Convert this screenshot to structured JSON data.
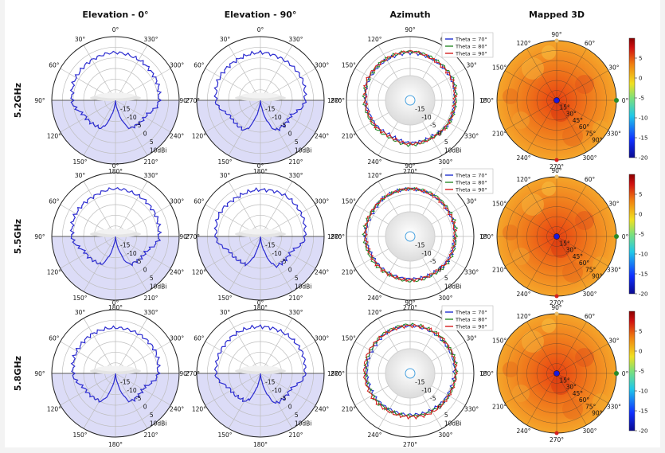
{
  "chart_data": {
    "type": "polar",
    "column_titles": [
      "Elevation - 0°",
      "Elevation - 90°",
      "Azimuth",
      "Mapped 3D"
    ],
    "row_labels": [
      "5.2GHz",
      "5.5GHz",
      "5.8GHz"
    ],
    "elevation_angle_labels": [
      "0°",
      "30°",
      "60°",
      "90°",
      "120°",
      "150°",
      "180°",
      "210°",
      "240°",
      "270°",
      "300°",
      "330°"
    ],
    "azimuth_angle_labels": [
      "0°",
      "30°",
      "60°",
      "90°",
      "120°",
      "150°",
      "180°",
      "210°",
      "240°",
      "270°",
      "300°",
      "330°"
    ],
    "radial_ticks": [
      "-15",
      "-10",
      "-5",
      "0",
      "5",
      "10dBi"
    ],
    "radial_range_dbi": [
      -20,
      10
    ],
    "legend": [
      {
        "name": "Theta = 70°",
        "color": "#1f2fd0"
      },
      {
        "name": "Theta = 80°",
        "color": "#2a8a2a"
      },
      {
        "name": "Theta = 90°",
        "color": "#d62020"
      }
    ],
    "map_radial_labels": [
      "15°",
      "30°",
      "45°",
      "60°",
      "75°",
      "90°"
    ],
    "colorbar_ticks": [
      "5",
      "0",
      "-5",
      "-10",
      "-15",
      "-20"
    ],
    "colorbar_range": [
      -20,
      10
    ],
    "colors": {
      "pattern": "#2b2bd0",
      "shade": "#dcdcf7"
    },
    "series_dbi_sampled_every_30deg": {
      "5.2GHz": {
        "elev0": [
          2.5,
          2,
          1.5,
          0.5,
          -4,
          -5,
          -20,
          -5,
          -4,
          0.5,
          1.5,
          2
        ],
        "elev90": [
          2.5,
          2,
          2,
          1,
          -4,
          -4,
          -20,
          -4,
          -4,
          1,
          2,
          2
        ],
        "az_theta70": [
          1,
          2,
          2,
          2.5,
          2,
          2,
          1,
          0,
          -1,
          0,
          0,
          1
        ],
        "az_theta80": [
          1.5,
          2.5,
          2.5,
          3,
          2.5,
          2,
          1.5,
          1,
          0,
          1,
          0.5,
          1
        ],
        "az_theta90": [
          1,
          2,
          2,
          3,
          2.5,
          2.5,
          1,
          0.5,
          -0.5,
          0.5,
          0.5,
          1
        ]
      },
      "5.5GHz": {
        "elev0": [
          2.5,
          1.5,
          1.5,
          0.5,
          -4,
          -5,
          -20,
          -5,
          -4,
          0.5,
          1.5,
          2
        ],
        "elev90": [
          2,
          1.5,
          2,
          1,
          -4,
          -5,
          -20,
          -4,
          -4,
          1,
          2,
          2.5
        ],
        "az_theta70": [
          1,
          1.5,
          2,
          2.5,
          2,
          1,
          1,
          0,
          0,
          0,
          0.5,
          1
        ],
        "az_theta80": [
          1.5,
          2,
          2.5,
          2.5,
          2,
          1.5,
          1.5,
          1,
          0.5,
          1,
          1,
          1.5
        ],
        "az_theta90": [
          1,
          1.5,
          2,
          2.5,
          2,
          1.5,
          1,
          0.5,
          0.5,
          0.5,
          0.5,
          1
        ]
      },
      "5.8GHz": {
        "elev0": [
          1.5,
          1.5,
          1,
          0,
          -4,
          -5,
          -20,
          -5,
          -5,
          0,
          1.5,
          1.5
        ],
        "elev90": [
          2,
          2,
          1.5,
          1,
          -4,
          -5,
          -20,
          -4,
          -4,
          1,
          2,
          2
        ],
        "az_theta70": [
          1,
          1.5,
          2,
          2.5,
          2,
          1,
          0.5,
          0,
          -0.5,
          -0.5,
          0,
          0.5
        ],
        "az_theta80": [
          1.5,
          2,
          2.5,
          3,
          2.5,
          1.5,
          1,
          0.5,
          0,
          0,
          0.5,
          1
        ],
        "az_theta90": [
          1.5,
          2,
          2.5,
          2.5,
          2,
          2,
          1.5,
          1,
          0.5,
          0.5,
          1,
          1
        ]
      }
    }
  }
}
